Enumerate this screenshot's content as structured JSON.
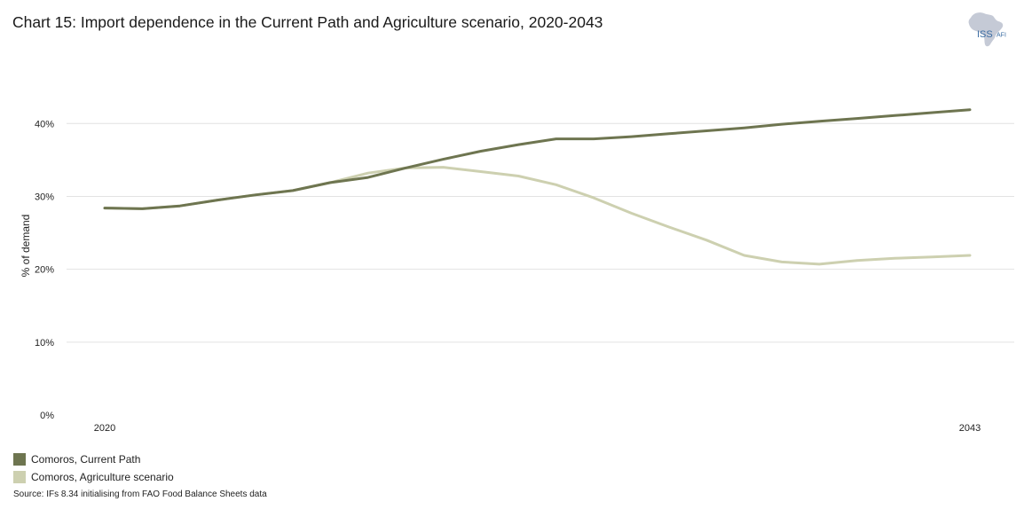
{
  "title": "Chart 15: Import dependence in the Current Path and Agriculture scenario, 2020-2043",
  "logo": {
    "text_main": "ISS",
    "text_sub": "AFI"
  },
  "source": "Source: IFs 8.34 initialising from FAO Food Balance Sheets data",
  "colors": {
    "current_path": "#6e7550",
    "agriculture": "#cdd0b0",
    "grid": "#e2e2e2",
    "logo_map": "#c5cad6",
    "logo_text": "#3b6da3"
  },
  "chart_data": {
    "type": "line",
    "title": "Chart 15: Import dependence in the Current Path and Agriculture scenario, 2020-2043",
    "xlabel": "",
    "ylabel": "% of demand",
    "x": [
      2020,
      2021,
      2022,
      2023,
      2024,
      2025,
      2026,
      2027,
      2028,
      2029,
      2030,
      2031,
      2032,
      2033,
      2034,
      2035,
      2036,
      2037,
      2038,
      2039,
      2040,
      2041,
      2042,
      2043
    ],
    "x_tick_labels": [
      "2020",
      "2043"
    ],
    "y_ticks": [
      0,
      10,
      20,
      30,
      40
    ],
    "y_tick_labels": [
      "0%",
      "10%",
      "20%",
      "30%",
      "40%"
    ],
    "ylim": [
      0,
      46
    ],
    "grid": true,
    "legend_position": "bottom-left",
    "series": [
      {
        "name": "Comoros, Current Path",
        "values": [
          28.4,
          28.3,
          28.7,
          29.5,
          30.2,
          30.8,
          31.9,
          32.6,
          33.9,
          35.1,
          36.2,
          37.1,
          37.9,
          37.9,
          38.2,
          38.6,
          39.0,
          39.4,
          39.9,
          40.3,
          40.7,
          41.1,
          41.5,
          41.9
        ]
      },
      {
        "name": "Comoros, Agriculture scenario",
        "values": [
          28.4,
          28.3,
          28.7,
          29.5,
          30.2,
          30.8,
          31.9,
          33.2,
          33.9,
          34.0,
          33.4,
          32.8,
          31.6,
          29.8,
          27.7,
          25.8,
          24.0,
          21.9,
          21.0,
          20.7,
          21.2,
          21.5,
          21.7,
          21.9
        ]
      }
    ]
  }
}
